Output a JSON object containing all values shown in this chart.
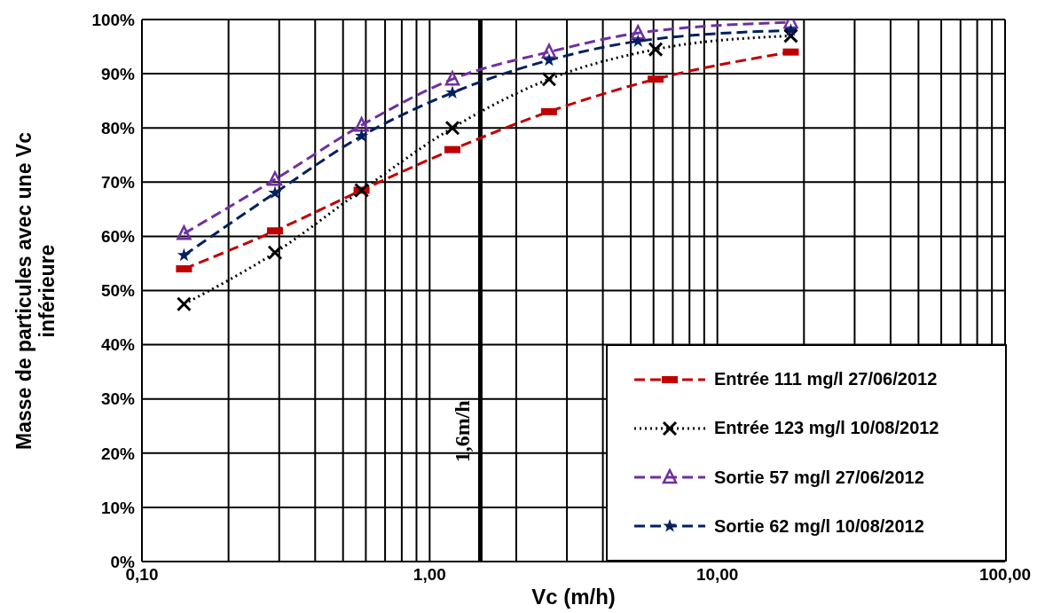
{
  "chart_data": {
    "type": "line",
    "xlabel": "Vc (m/h)",
    "ylabel": "Masse de particules  avec une Vc inférieure",
    "log": "x",
    "grid": true,
    "legend": "bottom right",
    "xlim": [
      0.1,
      100
    ],
    "xticks": [
      {
        "value": 0.1,
        "label": "0,10"
      },
      {
        "value": 0.2,
        "label": null
      },
      {
        "value": 0.3,
        "label": null
      },
      {
        "value": 0.4,
        "label": null
      },
      {
        "value": 0.5,
        "label": null
      },
      {
        "value": 0.6,
        "label": null
      },
      {
        "value": 0.7,
        "label": null
      },
      {
        "value": 0.8,
        "label": null
      },
      {
        "value": 0.9,
        "label": null
      },
      {
        "value": 1,
        "label": "1,00"
      },
      {
        "value": 2,
        "label": null
      },
      {
        "value": 3,
        "label": null
      },
      {
        "value": 4,
        "label": null
      },
      {
        "value": 5,
        "label": null
      },
      {
        "value": 6,
        "label": null
      },
      {
        "value": 7,
        "label": null
      },
      {
        "value": 8,
        "label": null
      },
      {
        "value": 9,
        "label": null
      },
      {
        "value": 10,
        "label": "10,00"
      },
      {
        "value": 20,
        "label": null
      },
      {
        "value": 30,
        "label": null
      },
      {
        "value": 40,
        "label": null
      },
      {
        "value": 50,
        "label": null
      },
      {
        "value": 60,
        "label": null
      },
      {
        "value": 70,
        "label": null
      },
      {
        "value": 80,
        "label": null
      },
      {
        "value": 90,
        "label": null
      },
      {
        "value": 100,
        "label": "100,00"
      }
    ],
    "ylim": [
      0,
      100
    ],
    "yticks": [
      {
        "value": 0,
        "label": "0%"
      },
      {
        "value": 10,
        "label": "10%"
      },
      {
        "value": 20,
        "label": "20%"
      },
      {
        "value": 30,
        "label": "30%"
      },
      {
        "value": 40,
        "label": "40%"
      },
      {
        "value": 50,
        "label": "50%"
      },
      {
        "value": 60,
        "label": "60%"
      },
      {
        "value": 70,
        "label": "70%"
      },
      {
        "value": 80,
        "label": "80%"
      },
      {
        "value": 90,
        "label": "90%"
      },
      {
        "value": 100,
        "label": "100%"
      }
    ],
    "ref_lines": [
      {
        "axis": "x",
        "value": 1.5,
        "label": "1,6m/h",
        "color": "#000000"
      }
    ],
    "series": [
      {
        "name": "Entrée 111 mg/l 27/06/2012",
        "color": "#c00000",
        "line_style": "dashed",
        "marker": "square",
        "x": [
          0.14,
          0.29,
          0.58,
          1.2,
          2.6,
          6.1,
          18
        ],
        "values": [
          54,
          61,
          68.5,
          76,
          83,
          89,
          94
        ]
      },
      {
        "name": "Entrée 123 mg/l 10/08/2012",
        "color": "#000000",
        "line_style": "dotted",
        "marker": "cross",
        "x": [
          0.14,
          0.29,
          0.58,
          1.2,
          2.6,
          6.1,
          18
        ],
        "values": [
          47.5,
          57,
          68.5,
          80,
          89,
          94.5,
          97
        ]
      },
      {
        "name": "Sortie 57 mg/l 27/06/2012",
        "color": "#7030a0",
        "line_style": "dashed",
        "marker": "triangle",
        "x": [
          0.14,
          0.29,
          0.58,
          1.2,
          2.6,
          5.3,
          18
        ],
        "values": [
          60.5,
          70.5,
          80.5,
          89,
          94,
          97.5,
          99.5
        ]
      },
      {
        "name": "Sortie 62 mg/l 10/08/2012",
        "color": "#002060",
        "line_style": "dashed",
        "marker": "star",
        "x": [
          0.14,
          0.29,
          0.58,
          1.2,
          2.6,
          5.3,
          18
        ],
        "values": [
          56.5,
          68,
          78.5,
          86.5,
          92.5,
          96,
          98
        ]
      }
    ]
  }
}
